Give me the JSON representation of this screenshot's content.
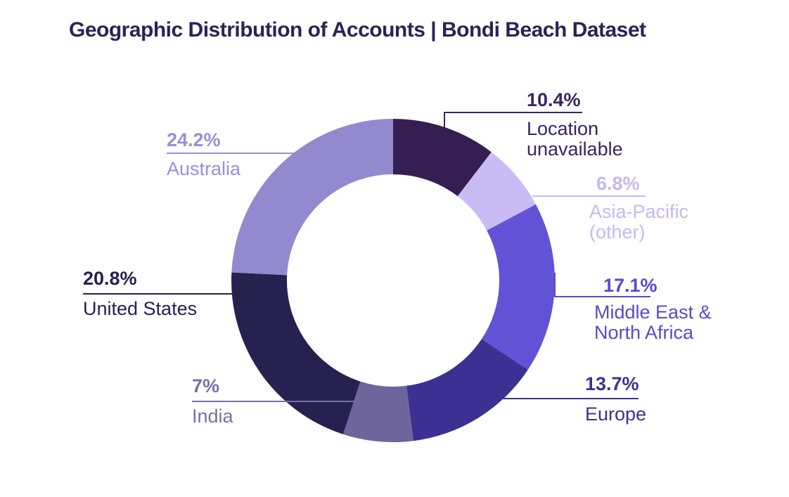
{
  "title": "Geographic Distribution of Accounts | Bondi Beach Dataset",
  "chart_data": {
    "type": "pie",
    "variant": "donut",
    "title": "Geographic Distribution of Accounts | Bondi Beach Dataset",
    "unit": "%",
    "direction": "clockwise",
    "start_angle_deg": 0,
    "inner_radius_ratio": 0.657,
    "legend_position": "outside-callouts",
    "segments": [
      {
        "id": "location-unavailable",
        "label": "Location unavailable",
        "label_lines": "Location\nunavailable",
        "value": 10.4,
        "pct_label": "10.4%",
        "color": "#351E52",
        "label_color": "#3A2363"
      },
      {
        "id": "asia-pacific-other",
        "label": "Asia-Pacific (other)",
        "label_lines": "Asia-Pacific\n(other)",
        "value": 6.8,
        "pct_label": "6.8%",
        "color": "#C9BCF5",
        "label_color": "#C5B9F4"
      },
      {
        "id": "middle-east-north-africa",
        "label": "Middle East & North Africa",
        "label_lines": "Middle East &\nNorth Africa",
        "value": 17.1,
        "pct_label": "17.1%",
        "color": "#6253D6",
        "label_color": "#5C49CE"
      },
      {
        "id": "europe",
        "label": "Europe",
        "label_lines": "Europe",
        "value": 13.7,
        "pct_label": "13.7%",
        "color": "#3C3192",
        "label_color": "#3C3192"
      },
      {
        "id": "india",
        "label": "India",
        "label_lines": "India",
        "value": 7,
        "pct_label": "7%",
        "color": "#6E659C",
        "label_color": "#786FA6"
      },
      {
        "id": "united-states",
        "label": "United States",
        "label_lines": "United States",
        "value": 20.8,
        "pct_label": "20.8%",
        "color": "#272150",
        "label_color": "#262051"
      },
      {
        "id": "australia",
        "label": "Australia",
        "label_lines": "Australia",
        "value": 24.2,
        "pct_label": "24.2%",
        "color": "#9389CE",
        "label_color": "#9A8ED8"
      }
    ]
  }
}
